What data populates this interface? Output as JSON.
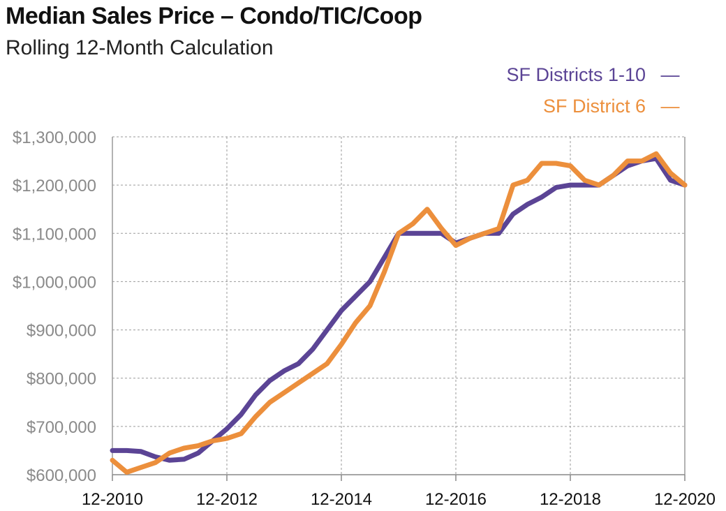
{
  "chart_data": {
    "type": "line",
    "title": "Median Sales Price – Condo/TIC/Coop",
    "subtitle": "Rolling 12-Month Calculation",
    "xlabel": "",
    "ylabel": "",
    "ylim": [
      600000,
      1300000
    ],
    "xlim": [
      0,
      120
    ],
    "x_tick_labels": [
      "12-2010",
      "12-2012",
      "12-2014",
      "12-2016",
      "12-2018",
      "12-2020"
    ],
    "x_tick_positions": [
      0,
      24,
      48,
      72,
      96,
      120
    ],
    "y_tick_labels": [
      "$600,000",
      "$700,000",
      "$800,000",
      "$900,000",
      "$1,000,000",
      "$1,100,000",
      "$1,200,000",
      "$1,300,000"
    ],
    "y_tick_values": [
      600000,
      700000,
      800000,
      900000,
      1000000,
      1100000,
      1200000,
      1300000
    ],
    "grid": true,
    "legend_position": "top-right",
    "series": [
      {
        "name": "SF Districts 1-10",
        "marker": "—",
        "color": "#5b4495",
        "x": [
          0,
          3,
          6,
          9,
          12,
          15,
          18,
          21,
          24,
          27,
          30,
          33,
          36,
          39,
          42,
          45,
          48,
          51,
          54,
          57,
          60,
          63,
          66,
          69,
          72,
          75,
          78,
          81,
          84,
          87,
          90,
          93,
          96,
          99,
          102,
          105,
          108,
          111,
          114,
          117,
          120
        ],
        "values": [
          650000,
          650000,
          648000,
          637000,
          630000,
          632000,
          645000,
          670000,
          695000,
          725000,
          765000,
          795000,
          815000,
          830000,
          860000,
          900000,
          940000,
          970000,
          1000000,
          1050000,
          1100000,
          1100000,
          1100000,
          1100000,
          1080000,
          1090000,
          1100000,
          1100000,
          1140000,
          1160000,
          1175000,
          1195000,
          1200000,
          1200000,
          1200000,
          1220000,
          1240000,
          1250000,
          1255000,
          1210000,
          1200000
        ]
      },
      {
        "name": "SF District 6",
        "marker": "—",
        "color": "#ec8f3c",
        "x": [
          0,
          3,
          6,
          9,
          12,
          15,
          18,
          21,
          24,
          27,
          30,
          33,
          36,
          39,
          42,
          45,
          48,
          51,
          54,
          57,
          60,
          63,
          66,
          69,
          72,
          75,
          78,
          81,
          84,
          87,
          90,
          93,
          96,
          99,
          102,
          105,
          108,
          111,
          114,
          117,
          120
        ],
        "values": [
          630000,
          605000,
          615000,
          625000,
          645000,
          655000,
          660000,
          670000,
          675000,
          685000,
          720000,
          750000,
          770000,
          790000,
          810000,
          830000,
          870000,
          915000,
          950000,
          1020000,
          1100000,
          1120000,
          1150000,
          1110000,
          1075000,
          1090000,
          1100000,
          1110000,
          1200000,
          1210000,
          1245000,
          1245000,
          1240000,
          1210000,
          1200000,
          1220000,
          1250000,
          1250000,
          1265000,
          1225000,
          1200000
        ]
      }
    ]
  }
}
